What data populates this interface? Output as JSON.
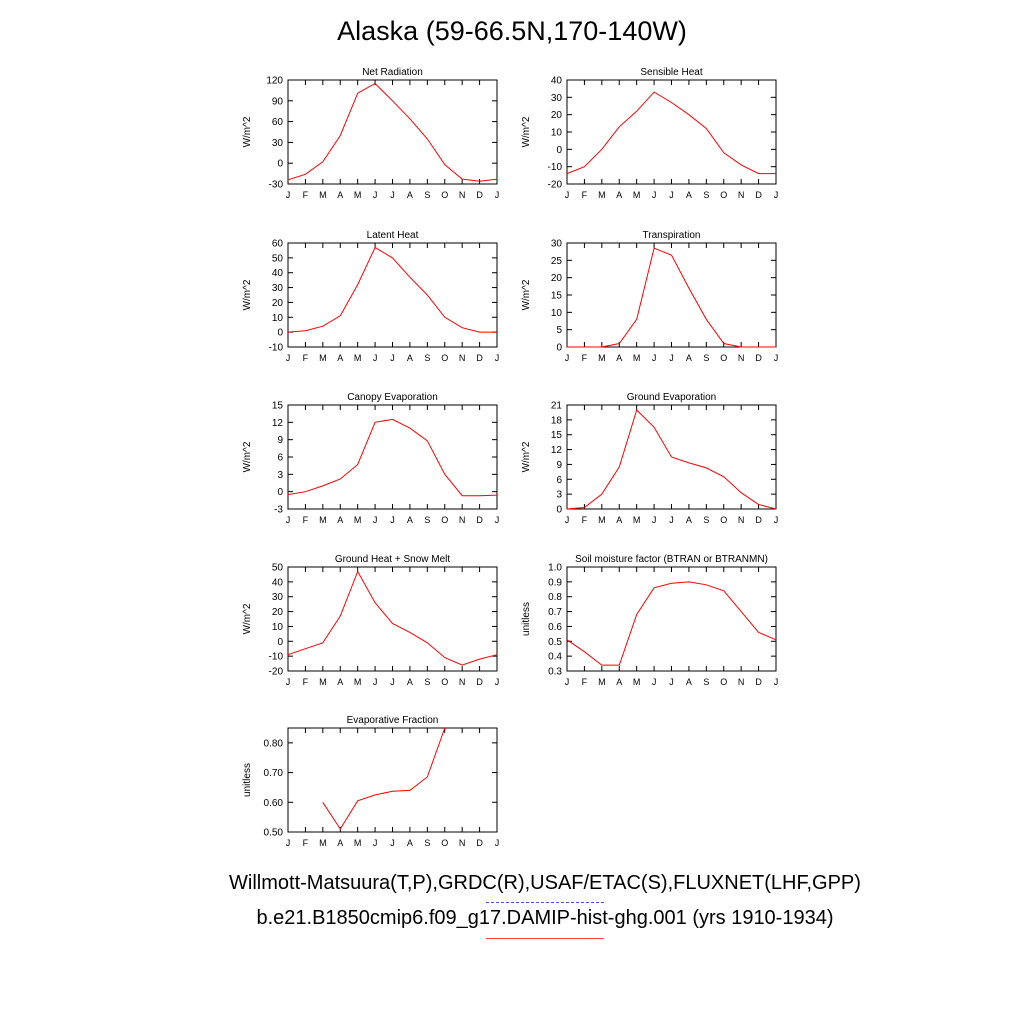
{
  "title": "Alaska (59-66.5N,170-140W)",
  "legend": {
    "observations": "Willmott-Matsuura(T,P),GRDC(R),USAF/ETAC(S),FLUXNET(LHF,GPP)",
    "observations_color": "#4a4aff",
    "observations_style": "dashed",
    "model": "b.e21.B1850cmip6.f09_g17.DAMIP-hist-ghg.001 (yrs 1910-1934)",
    "model_color": "#ff0000",
    "model_style": "solid"
  },
  "chart_data": [
    {
      "type": "line",
      "title": "Net Radiation",
      "ylabel": "W/m^2",
      "x": [
        "J",
        "F",
        "M",
        "A",
        "M",
        "J",
        "J",
        "A",
        "S",
        "O",
        "N",
        "D",
        "J"
      ],
      "ylim": [
        -30,
        120
      ],
      "yticks": [
        "-30",
        "0",
        "30",
        "60",
        "90",
        "120"
      ],
      "series": [
        {
          "color": "#ff0000",
          "values": [
            -24,
            -16,
            2,
            40,
            101,
            115,
            90,
            64,
            35,
            -2,
            -23,
            -26,
            -23
          ]
        }
      ]
    },
    {
      "type": "line",
      "title": "Sensible Heat",
      "ylabel": "W/m^2",
      "x": [
        "J",
        "F",
        "M",
        "A",
        "M",
        "J",
        "J",
        "A",
        "S",
        "O",
        "N",
        "D",
        "J"
      ],
      "ylim": [
        -20,
        40
      ],
      "yticks": [
        "-20",
        "-10",
        "0",
        "10",
        "20",
        "30",
        "40"
      ],
      "series": [
        {
          "color": "#ff0000",
          "values": [
            -14,
            -10,
            0,
            13,
            22,
            33,
            27,
            20,
            12,
            -2,
            -9,
            -14,
            -14
          ]
        }
      ]
    },
    {
      "type": "line",
      "title": "Latent Heat",
      "ylabel": "W/m^2",
      "x": [
        "J",
        "F",
        "M",
        "A",
        "M",
        "J",
        "J",
        "A",
        "S",
        "O",
        "N",
        "D",
        "J"
      ],
      "ylim": [
        -10,
        60
      ],
      "yticks": [
        "-10",
        "0",
        "10",
        "20",
        "30",
        "40",
        "50",
        "60"
      ],
      "series": [
        {
          "color": "#ff0000",
          "values": [
            0,
            1,
            4,
            11,
            32,
            57,
            50,
            37,
            25,
            10,
            3,
            0,
            0
          ]
        }
      ]
    },
    {
      "type": "line",
      "title": "Transpiration",
      "ylabel": "W/m^2",
      "x": [
        "J",
        "F",
        "M",
        "A",
        "M",
        "J",
        "J",
        "A",
        "S",
        "O",
        "N",
        "D",
        "J"
      ],
      "ylim": [
        0,
        30
      ],
      "yticks": [
        "0",
        "5",
        "10",
        "15",
        "20",
        "25",
        "30"
      ],
      "series": [
        {
          "color": "#ff0000",
          "values": [
            0,
            0,
            0,
            1,
            8,
            28.5,
            26.5,
            17,
            8,
            1,
            0,
            0,
            0
          ]
        }
      ]
    },
    {
      "type": "line",
      "title": "Canopy Evaporation",
      "ylabel": "W/m^2",
      "x": [
        "J",
        "F",
        "M",
        "A",
        "M",
        "J",
        "J",
        "A",
        "S",
        "O",
        "N",
        "D",
        "J"
      ],
      "ylim": [
        -3,
        15
      ],
      "yticks": [
        "-3",
        "0",
        "3",
        "6",
        "9",
        "12",
        "15"
      ],
      "series": [
        {
          "color": "#ff0000",
          "values": [
            -0.5,
            0,
            1,
            2.2,
            4.7,
            12,
            12.5,
            11,
            8.8,
            3,
            -0.7,
            -0.7,
            -0.6
          ]
        }
      ]
    },
    {
      "type": "line",
      "title": "Ground Evaporation",
      "ylabel": "W/m^2",
      "x": [
        "J",
        "F",
        "M",
        "A",
        "M",
        "J",
        "J",
        "A",
        "S",
        "O",
        "N",
        "D",
        "J"
      ],
      "ylim": [
        0,
        21
      ],
      "yticks": [
        "0",
        "3",
        "6",
        "9",
        "12",
        "15",
        "18",
        "21"
      ],
      "series": [
        {
          "color": "#ff0000",
          "values": [
            0,
            0.3,
            3,
            8.5,
            20,
            16.5,
            10.5,
            9.3,
            8.3,
            6.5,
            3.3,
            0.9,
            0
          ]
        }
      ]
    },
    {
      "type": "line",
      "title": "Ground Heat + Snow Melt",
      "ylabel": "W/m^2",
      "x": [
        "J",
        "F",
        "M",
        "A",
        "M",
        "J",
        "J",
        "A",
        "S",
        "O",
        "N",
        "D",
        "J"
      ],
      "ylim": [
        -20,
        50
      ],
      "yticks": [
        "-20",
        "-10",
        "0",
        "10",
        "20",
        "30",
        "40",
        "50"
      ],
      "series": [
        {
          "color": "#ff0000",
          "values": [
            -9,
            -5,
            -1,
            17,
            47,
            26,
            12,
            6,
            -1,
            -11,
            -16,
            -12,
            -9
          ]
        }
      ]
    },
    {
      "type": "line",
      "title": "Soil moisture factor (BTRAN or BTRANMN)",
      "ylabel": "unitless",
      "x": [
        "J",
        "F",
        "M",
        "A",
        "M",
        "J",
        "J",
        "A",
        "S",
        "O",
        "N",
        "D",
        "J"
      ],
      "ylim": [
        0.3,
        1.0
      ],
      "yticks": [
        "0.3",
        "0.4",
        "0.5",
        "0.6",
        "0.7",
        "0.8",
        "0.9",
        "1.0"
      ],
      "series": [
        {
          "color": "#ff0000",
          "values": [
            0.51,
            0.43,
            0.34,
            0.34,
            0.68,
            0.86,
            0.89,
            0.9,
            0.88,
            0.84,
            0.7,
            0.56,
            0.51
          ]
        }
      ]
    },
    {
      "type": "line",
      "title": "Evaporative Fraction",
      "ylabel": "unitless",
      "x": [
        "J",
        "F",
        "M",
        "A",
        "M",
        "J",
        "J",
        "A",
        "S",
        "O",
        "N",
        "D",
        "J"
      ],
      "ylim": [
        0.5,
        0.85
      ],
      "yticks": [
        "0.50",
        "0.60",
        "0.70",
        "0.80"
      ],
      "series": [
        {
          "color": "#ff0000",
          "values": [
            null,
            null,
            0.6,
            0.51,
            0.605,
            0.625,
            0.637,
            0.64,
            0.685,
            0.85,
            null,
            null,
            null
          ]
        }
      ]
    }
  ]
}
